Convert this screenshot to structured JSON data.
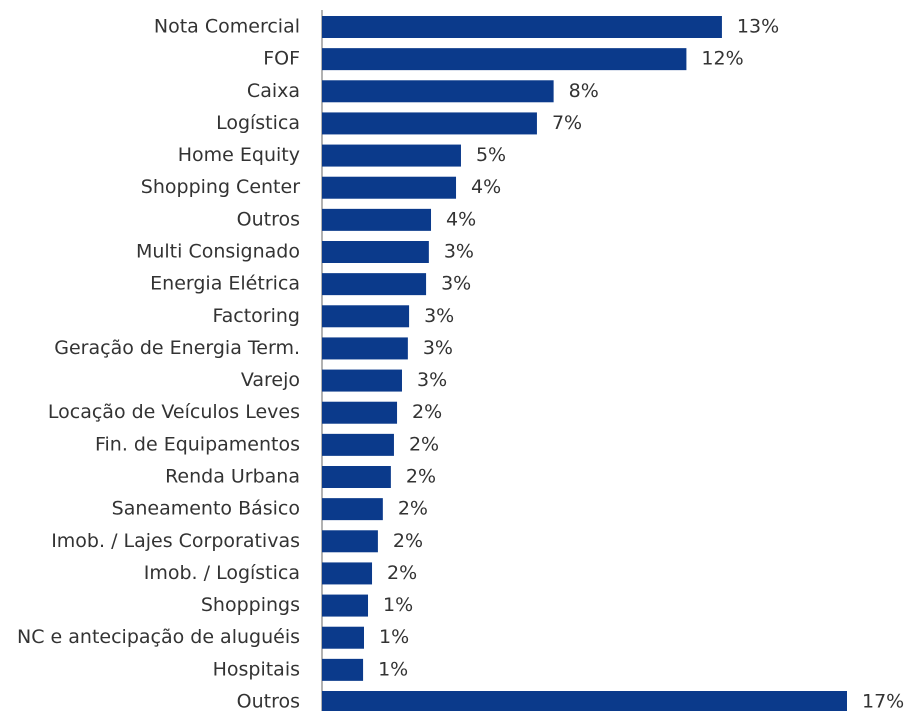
{
  "chart_data": {
    "type": "bar",
    "orientation": "horizontal",
    "color": "#0b3a8b",
    "categories": [
      "Nota Comercial",
      "FOF",
      "Caixa",
      "Logística",
      "Home Equity",
      "Shopping Center",
      "Outros",
      "Multi Consignado",
      "Energia Elétrica",
      "Factoring",
      "Geração de Energia Term.",
      "Varejo",
      "Locação de Veículos Leves",
      "Fin. de Equipamentos",
      "Renda Urbana",
      "Saneamento Básico",
      "Imob. / Lajes Corporativas",
      "Imob. / Logística",
      "Shoppings",
      "NC e antecipação de aluguéis",
      "Hospitais",
      "Outros"
    ],
    "values": [
      12.95,
      11.8,
      7.5,
      6.96,
      4.5,
      4.34,
      3.53,
      3.46,
      3.37,
      2.82,
      2.78,
      2.59,
      2.43,
      2.33,
      2.23,
      1.97,
      1.81,
      1.62,
      1.49,
      1.36,
      1.33,
      17
    ],
    "value_labels": [
      "13%",
      "12%",
      "8%",
      "7%",
      "5%",
      "4%",
      "4%",
      "3%",
      "3%",
      "3%",
      "3%",
      "3%",
      "2%",
      "2%",
      "2%",
      "2%",
      "2%",
      "2%",
      "1%",
      "1%",
      "1%",
      "17%"
    ]
  }
}
